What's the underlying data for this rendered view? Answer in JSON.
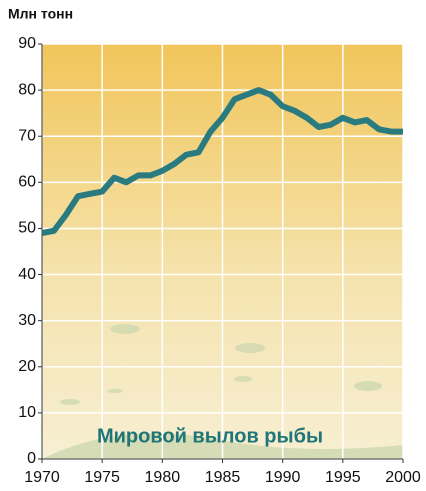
{
  "chart_data": {
    "type": "line",
    "y_label": "Млн тонн",
    "annotation": "Мировой вылов рыбы",
    "x": [
      1970,
      1971,
      1972,
      1973,
      1974,
      1975,
      1976,
      1977,
      1978,
      1979,
      1980,
      1981,
      1982,
      1983,
      1984,
      1985,
      1986,
      1987,
      1988,
      1989,
      1990,
      1991,
      1992,
      1993,
      1994,
      1995,
      1996,
      1997,
      1998,
      1999,
      2000
    ],
    "series": [
      {
        "name": "Мировой вылов рыбы",
        "color": "#2a7b7f",
        "values": [
          49,
          49.5,
          53,
          57,
          57.5,
          58,
          61,
          60,
          61.5,
          61.5,
          62.5,
          64,
          66,
          66.5,
          71,
          74,
          78,
          79,
          80,
          79,
          76.5,
          75.5,
          74,
          72,
          72.5,
          74,
          73,
          73.5,
          71.5,
          71,
          71
        ]
      }
    ],
    "xlim": [
      1970,
      2000
    ],
    "xticks": [
      1970,
      1975,
      1980,
      1985,
      1990,
      1995,
      2000
    ],
    "ylim": [
      0,
      90
    ],
    "yticks": [
      0,
      10,
      20,
      30,
      40,
      50,
      60,
      70,
      80,
      90
    ],
    "grid": true
  }
}
